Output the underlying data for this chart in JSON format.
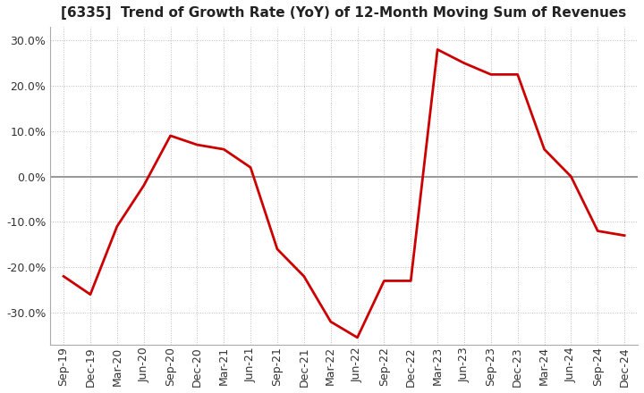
{
  "title": "[6335]  Trend of Growth Rate (YoY) of 12-Month Moving Sum of Revenues",
  "x_labels": [
    "Sep-19",
    "Dec-19",
    "Mar-20",
    "Jun-20",
    "Sep-20",
    "Dec-20",
    "Mar-21",
    "Jun-21",
    "Sep-21",
    "Dec-21",
    "Mar-22",
    "Jun-22",
    "Sep-22",
    "Dec-22",
    "Mar-23",
    "Jun-23",
    "Sep-23",
    "Dec-23",
    "Mar-24",
    "Jun-24",
    "Sep-24",
    "Dec-24"
  ],
  "y_values": [
    -22.0,
    -26.0,
    -11.0,
    -2.0,
    9.0,
    7.0,
    6.0,
    2.0,
    -16.0,
    -22.0,
    -32.0,
    -35.5,
    -23.0,
    -23.0,
    28.0,
    25.0,
    22.5,
    22.5,
    6.0,
    0.0,
    -12.0,
    -13.0
  ],
  "line_color": "#cc0000",
  "background_color": "#ffffff",
  "grid_color": "#bbbbbb",
  "grid_style": "dotted",
  "ylim": [
    -37,
    33
  ],
  "yticks": [
    -30.0,
    -20.0,
    -10.0,
    0.0,
    10.0,
    20.0,
    30.0
  ],
  "title_fontsize": 11,
  "tick_fontsize": 9
}
